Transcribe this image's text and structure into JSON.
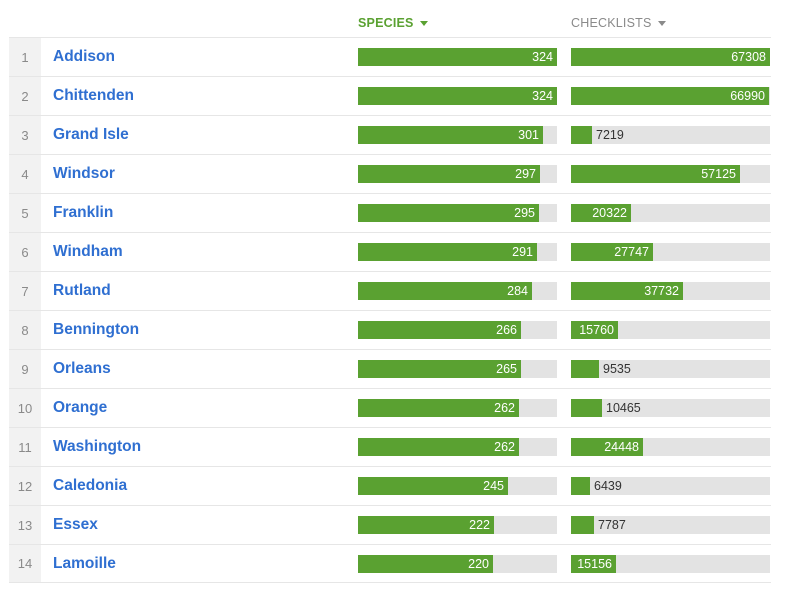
{
  "colors": {
    "fill": "#5aa131",
    "track": "#e3e3e3",
    "link": "#2f6fd1",
    "sortActive": "#5aa131",
    "sortInactive": "#8a8a8a"
  },
  "header": {
    "species_label": "SPECIES",
    "checklists_label": "CHECKLISTS"
  },
  "scale": {
    "species_max": 324,
    "checklists_max": 67308
  },
  "rows": [
    {
      "rank": "1",
      "name": "Addison",
      "species": 324,
      "checklists": 67308
    },
    {
      "rank": "2",
      "name": "Chittenden",
      "species": 324,
      "checklists": 66990
    },
    {
      "rank": "3",
      "name": "Grand Isle",
      "species": 301,
      "checklists": 7219
    },
    {
      "rank": "4",
      "name": "Windsor",
      "species": 297,
      "checklists": 57125
    },
    {
      "rank": "5",
      "name": "Franklin",
      "species": 295,
      "checklists": 20322
    },
    {
      "rank": "6",
      "name": "Windham",
      "species": 291,
      "checklists": 27747
    },
    {
      "rank": "7",
      "name": "Rutland",
      "species": 284,
      "checklists": 37732
    },
    {
      "rank": "8",
      "name": "Bennington",
      "species": 266,
      "checklists": 15760
    },
    {
      "rank": "9",
      "name": "Orleans",
      "species": 265,
      "checklists": 9535
    },
    {
      "rank": "10",
      "name": "Orange",
      "species": 262,
      "checklists": 10465
    },
    {
      "rank": "11",
      "name": "Washington",
      "species": 262,
      "checklists": 24448
    },
    {
      "rank": "12",
      "name": "Caledonia",
      "species": 245,
      "checklists": 6439
    },
    {
      "rank": "13",
      "name": "Essex",
      "species": 222,
      "checklists": 7787
    },
    {
      "rank": "14",
      "name": "Lamoille",
      "species": 220,
      "checklists": 15156
    }
  ]
}
